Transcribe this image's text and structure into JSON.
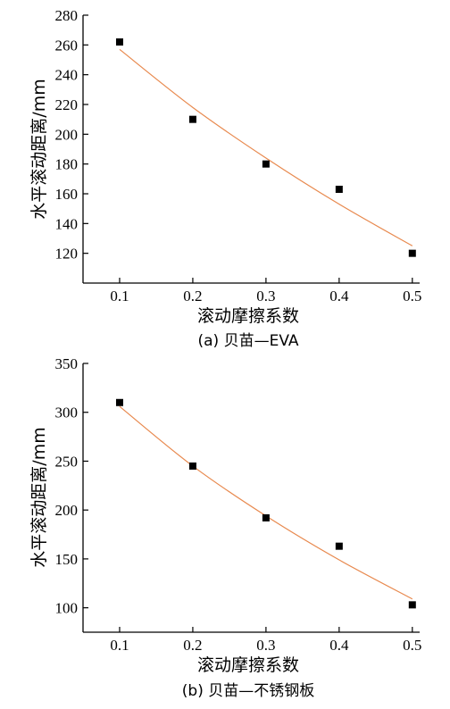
{
  "chart_data": [
    {
      "type": "scatter",
      "caption": "(a) 贝苗—EVA",
      "xlabel": "滚动摩擦系数",
      "ylabel": "水平滚动距离/mm",
      "xlim": [
        0.05,
        0.51
      ],
      "ylim": [
        100,
        280
      ],
      "xticks": [
        0.1,
        0.2,
        0.3,
        0.4,
        0.5
      ],
      "yticks": [
        120,
        140,
        160,
        180,
        200,
        220,
        240,
        260,
        280
      ],
      "grid": false,
      "x": [
        0.1,
        0.2,
        0.3,
        0.4,
        0.5
      ],
      "y": [
        262,
        210,
        180,
        163,
        120
      ],
      "fit_curve": {
        "x": [
          0.1,
          0.2,
          0.3,
          0.4,
          0.5
        ],
        "y": [
          257,
          218,
          184,
          153,
          125
        ],
        "color": "#e8894e"
      },
      "marker_color": "#000000"
    },
    {
      "type": "scatter",
      "caption": "(b) 贝苗—不锈钢板",
      "xlabel": "滚动摩擦系数",
      "ylabel": "水平滚动距离/mm",
      "xlim": [
        0.05,
        0.51
      ],
      "ylim": [
        75,
        350
      ],
      "xticks": [
        0.1,
        0.2,
        0.3,
        0.4,
        0.5
      ],
      "yticks": [
        100,
        150,
        200,
        250,
        300,
        350
      ],
      "grid": false,
      "x": [
        0.1,
        0.2,
        0.3,
        0.4,
        0.5
      ],
      "y": [
        310,
        245,
        192,
        163,
        103
      ],
      "fit_curve": {
        "x": [
          0.1,
          0.2,
          0.3,
          0.4,
          0.5
        ],
        "y": [
          306,
          245,
          194,
          149,
          109
        ],
        "color": "#e8894e"
      },
      "marker_color": "#000000"
    }
  ]
}
